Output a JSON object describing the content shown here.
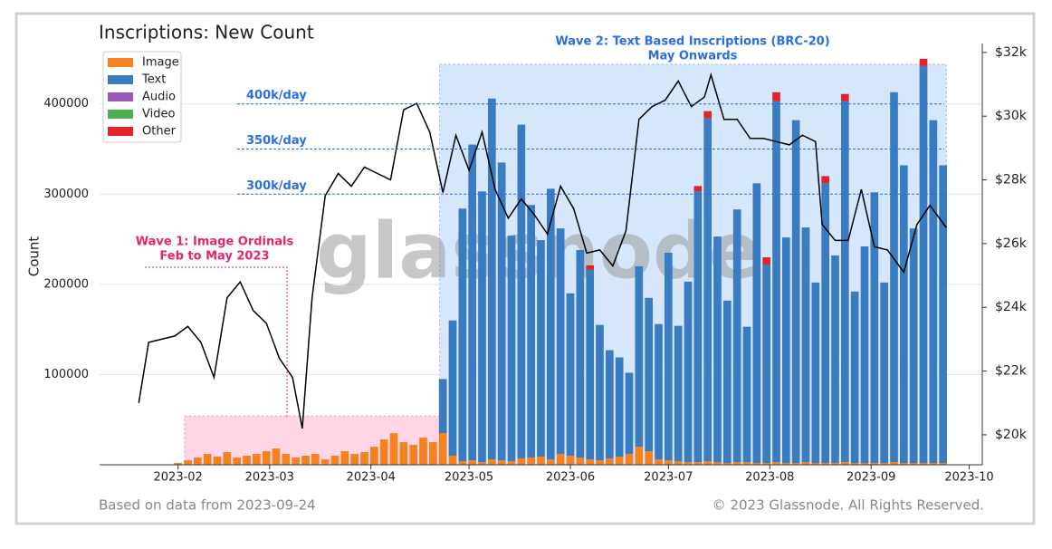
{
  "chart_data": {
    "type": "bar",
    "title": "Inscriptions: New Count",
    "ylabel": "Count",
    "watermark": "glassnode",
    "footer_left": "Based on data from 2023-09-24",
    "footer_right": "© 2023 Glassnode. All Rights Reserved.",
    "x": [
      "2023-02-01",
      "2023-02-04",
      "2023-02-07",
      "2023-02-10",
      "2023-02-13",
      "2023-02-16",
      "2023-02-19",
      "2023-02-22",
      "2023-02-25",
      "2023-02-28",
      "2023-03-03",
      "2023-03-06",
      "2023-03-09",
      "2023-03-12",
      "2023-03-15",
      "2023-03-18",
      "2023-03-21",
      "2023-03-24",
      "2023-03-27",
      "2023-03-30",
      "2023-04-02",
      "2023-04-05",
      "2023-04-08",
      "2023-04-11",
      "2023-04-14",
      "2023-04-17",
      "2023-04-20",
      "2023-04-23",
      "2023-04-26",
      "2023-04-29",
      "2023-05-02",
      "2023-05-05",
      "2023-05-08",
      "2023-05-11",
      "2023-05-14",
      "2023-05-17",
      "2023-05-20",
      "2023-05-23",
      "2023-05-26",
      "2023-05-29",
      "2023-06-01",
      "2023-06-04",
      "2023-06-07",
      "2023-06-10",
      "2023-06-13",
      "2023-06-16",
      "2023-06-19",
      "2023-06-22",
      "2023-06-25",
      "2023-06-28",
      "2023-07-01",
      "2023-07-04",
      "2023-07-07",
      "2023-07-10",
      "2023-07-13",
      "2023-07-16",
      "2023-07-19",
      "2023-07-22",
      "2023-07-25",
      "2023-07-28",
      "2023-07-31",
      "2023-08-03",
      "2023-08-06",
      "2023-08-09",
      "2023-08-12",
      "2023-08-15",
      "2023-08-18",
      "2023-08-21",
      "2023-08-24",
      "2023-08-27",
      "2023-08-30",
      "2023-09-02",
      "2023-09-05",
      "2023-09-08",
      "2023-09-11",
      "2023-09-14",
      "2023-09-17",
      "2023-09-20",
      "2023-09-23"
    ],
    "series": [
      {
        "name": "Image",
        "color": "#f5821f",
        "values": [
          2000,
          5000,
          8000,
          12000,
          9000,
          14000,
          8000,
          10000,
          12000,
          15000,
          18000,
          12000,
          8000,
          10000,
          12000,
          6000,
          10000,
          15000,
          12000,
          14000,
          20000,
          28000,
          35000,
          25000,
          22000,
          30000,
          25000,
          35000,
          10000,
          4000,
          5000,
          3000,
          6000,
          5000,
          4000,
          7000,
          8000,
          9000,
          6000,
          12000,
          10000,
          8000,
          6000,
          5000,
          7000,
          9000,
          12000,
          20000,
          15000,
          6000,
          5000,
          4000,
          3000,
          3000,
          4000,
          3000,
          2000,
          3000,
          3000,
          2000,
          2000,
          3000,
          2000,
          2000,
          3000,
          2000,
          2000,
          2000,
          3000,
          2000,
          2000,
          2000,
          2000,
          3000,
          2000,
          2000,
          2000,
          2000,
          2000
        ]
      },
      {
        "name": "Text",
        "color": "#3a7cc2",
        "values": [
          0,
          0,
          0,
          0,
          0,
          0,
          0,
          0,
          0,
          0,
          0,
          0,
          0,
          0,
          0,
          0,
          0,
          0,
          0,
          0,
          0,
          0,
          0,
          0,
          0,
          0,
          0,
          60000,
          150000,
          280000,
          350000,
          300000,
          400000,
          330000,
          250000,
          370000,
          280000,
          240000,
          300000,
          250000,
          180000,
          230000,
          210000,
          150000,
          120000,
          110000,
          90000,
          200000,
          170000,
          150000,
          230000,
          150000,
          200000,
          300000,
          380000,
          250000,
          180000,
          280000,
          150000,
          310000,
          220000,
          400000,
          250000,
          380000,
          260000,
          200000,
          310000,
          230000,
          400000,
          190000,
          240000,
          300000,
          200000,
          410000,
          330000,
          260000,
          440000,
          380000,
          330000
        ]
      },
      {
        "name": "Audio",
        "color": "#9b59b6",
        "values": [
          0,
          0,
          0,
          0,
          0,
          0,
          0,
          0,
          0,
          0,
          0,
          0,
          0,
          0,
          0,
          0,
          0,
          0,
          0,
          0,
          0,
          0,
          0,
          0,
          0,
          0,
          0,
          0,
          0,
          0,
          0,
          0,
          0,
          0,
          0,
          0,
          0,
          0,
          0,
          0,
          0,
          0,
          0,
          0,
          0,
          0,
          0,
          0,
          0,
          0,
          0,
          0,
          0,
          0,
          0,
          0,
          0,
          0,
          0,
          0,
          0,
          0,
          0,
          0,
          0,
          0,
          0,
          0,
          0,
          0,
          0,
          0,
          0,
          0,
          0,
          0,
          0,
          0,
          0
        ]
      },
      {
        "name": "Video",
        "color": "#4caf50",
        "values": [
          0,
          0,
          0,
          0,
          0,
          0,
          0,
          0,
          0,
          0,
          0,
          0,
          0,
          0,
          0,
          0,
          0,
          0,
          0,
          0,
          0,
          0,
          0,
          0,
          0,
          0,
          0,
          0,
          0,
          0,
          0,
          0,
          0,
          0,
          0,
          0,
          0,
          0,
          0,
          0,
          0,
          0,
          0,
          0,
          0,
          0,
          0,
          0,
          0,
          0,
          0,
          0,
          0,
          0,
          0,
          0,
          0,
          0,
          0,
          0,
          0,
          0,
          0,
          0,
          0,
          0,
          0,
          0,
          0,
          0,
          0,
          0,
          0,
          0,
          0,
          0,
          0,
          0,
          0
        ]
      },
      {
        "name": "Other",
        "color": "#e0242a",
        "values": [
          0,
          0,
          0,
          0,
          0,
          0,
          0,
          0,
          0,
          0,
          0,
          0,
          0,
          0,
          0,
          0,
          0,
          0,
          0,
          0,
          0,
          0,
          0,
          0,
          0,
          0,
          0,
          0,
          0,
          0,
          0,
          0,
          0,
          0,
          0,
          0,
          0,
          0,
          0,
          0,
          0,
          0,
          5000,
          0,
          0,
          0,
          0,
          0,
          0,
          0,
          0,
          0,
          0,
          6000,
          8000,
          0,
          0,
          0,
          0,
          0,
          8000,
          10000,
          0,
          0,
          0,
          0,
          8000,
          0,
          8000,
          0,
          0,
          0,
          0,
          0,
          0,
          0,
          8000,
          0,
          0
        ]
      }
    ],
    "price": {
      "color": "#000000",
      "x": [
        "2023-01-20",
        "2023-01-23",
        "2023-01-27",
        "2023-01-31",
        "2023-02-04",
        "2023-02-08",
        "2023-02-12",
        "2023-02-16",
        "2023-02-20",
        "2023-02-24",
        "2023-02-28",
        "2023-03-04",
        "2023-03-08",
        "2023-03-11",
        "2023-03-14",
        "2023-03-18",
        "2023-03-22",
        "2023-03-26",
        "2023-03-30",
        "2023-04-03",
        "2023-04-07",
        "2023-04-11",
        "2023-04-15",
        "2023-04-19",
        "2023-04-23",
        "2023-04-27",
        "2023-05-01",
        "2023-05-05",
        "2023-05-09",
        "2023-05-13",
        "2023-05-17",
        "2023-05-21",
        "2023-05-25",
        "2023-05-29",
        "2023-06-02",
        "2023-06-06",
        "2023-06-10",
        "2023-06-14",
        "2023-06-18",
        "2023-06-22",
        "2023-06-26",
        "2023-06-30",
        "2023-07-04",
        "2023-07-08",
        "2023-07-12",
        "2023-07-14",
        "2023-07-18",
        "2023-07-22",
        "2023-07-26",
        "2023-07-30",
        "2023-08-03",
        "2023-08-07",
        "2023-08-11",
        "2023-08-15",
        "2023-08-17",
        "2023-08-21",
        "2023-08-25",
        "2023-08-29",
        "2023-09-02",
        "2023-09-06",
        "2023-09-11",
        "2023-09-15",
        "2023-09-19",
        "2023-09-24"
      ],
      "values": [
        21000,
        22900,
        23000,
        23100,
        23400,
        22900,
        21800,
        24300,
        24800,
        23900,
        23500,
        22400,
        21800,
        20200,
        24300,
        27500,
        28200,
        27800,
        28400,
        28200,
        28000,
        30200,
        30400,
        29500,
        27600,
        29400,
        28300,
        29500,
        27700,
        26800,
        27400,
        26900,
        26300,
        27800,
        27100,
        25700,
        25800,
        25300,
        26400,
        29900,
        30300,
        30500,
        31100,
        30300,
        30600,
        31300,
        29900,
        29900,
        29300,
        29300,
        29200,
        29100,
        29400,
        29200,
        26600,
        26100,
        26100,
        27700,
        25900,
        25800,
        25100,
        26600,
        27200,
        26500
      ]
    },
    "xlim": [
      "2023-01-08",
      "2023-10-05"
    ],
    "xticks": [
      {
        "value": "2023-02-01",
        "label": "2023-02"
      },
      {
        "value": "2023-03-01",
        "label": "2023-03"
      },
      {
        "value": "2023-04-01",
        "label": "2023-04"
      },
      {
        "value": "2023-05-01",
        "label": "2023-05"
      },
      {
        "value": "2023-06-01",
        "label": "2023-06"
      },
      {
        "value": "2023-07-01",
        "label": "2023-07"
      },
      {
        "value": "2023-08-01",
        "label": "2023-08"
      },
      {
        "value": "2023-09-01",
        "label": "2023-09"
      },
      {
        "value": "2023-10-01",
        "label": "2023-10"
      }
    ],
    "ylim": [
      0,
      467000
    ],
    "yticks": [
      100000,
      200000,
      300000,
      400000
    ],
    "y2lim": [
      19060,
      32280
    ],
    "y2ticks": [
      {
        "value": 20000,
        "label": "$20k"
      },
      {
        "value": 22000,
        "label": "$22k"
      },
      {
        "value": 24000,
        "label": "$24k"
      },
      {
        "value": 26000,
        "label": "$26k"
      },
      {
        "value": 28000,
        "label": "$28k"
      },
      {
        "value": 30000,
        "label": "$30k"
      },
      {
        "value": 32000,
        "label": "$32k"
      }
    ],
    "grid": true,
    "legend": "upper left",
    "hlines": [
      {
        "value": 400000,
        "label": "400k/day"
      },
      {
        "value": 350000,
        "label": "350k/day"
      },
      {
        "value": 300000,
        "label": "300k/day"
      }
    ],
    "regions": [
      {
        "start": "2023-02-03",
        "end": "2023-04-24",
        "top": 54000,
        "color": "#ffd6e6",
        "text_color": "#e8246e",
        "label": [
          "Wave 1: Image Ordinals",
          "Feb to May 2023"
        ]
      },
      {
        "start": "2023-04-22",
        "end": "2023-09-24",
        "top": 444000,
        "color": "#d6e6fb",
        "text_color": "#2a6ee0",
        "label": [
          "Wave 2: Text Based Inscriptions (BRC-20)",
          "May Onwards"
        ]
      }
    ]
  }
}
